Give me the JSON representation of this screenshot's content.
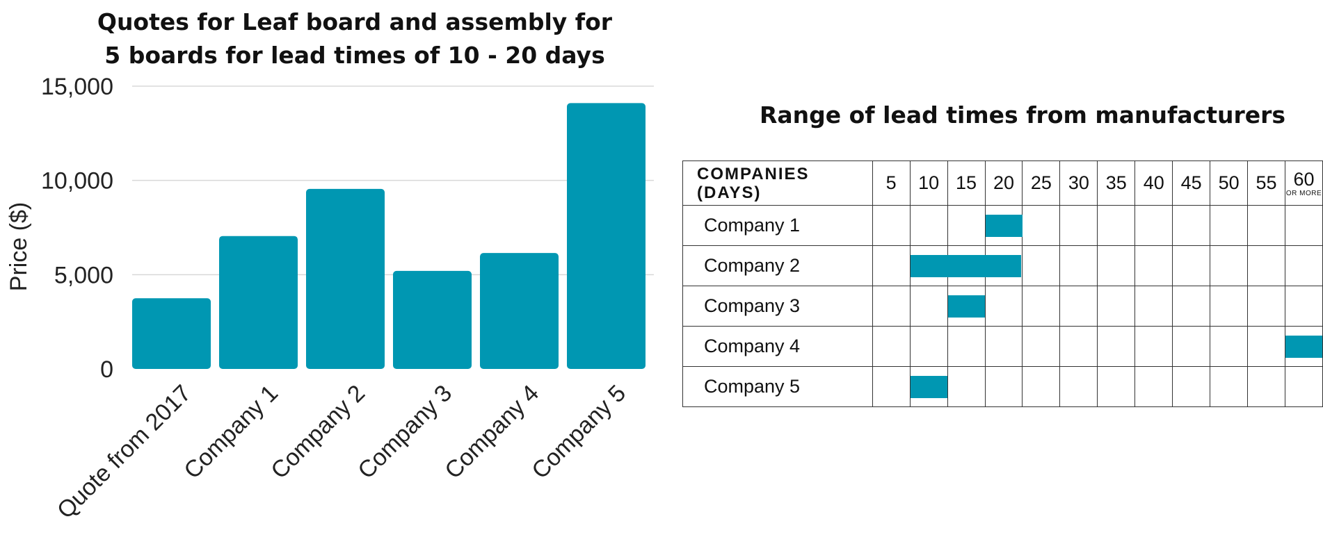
{
  "colors": {
    "accent": "#0097b2",
    "grid": "#d8d8d8",
    "text": "#111111"
  },
  "chart_data": [
    {
      "type": "bar",
      "title": "Quotes for Leaf board and assembly for 5 boards for lead times of 10 - 20 days",
      "categories": [
        "Quote from 2017",
        "Company 1",
        "Company 2",
        "Company 3",
        "Company 4",
        "Company 5"
      ],
      "values": [
        3750,
        7050,
        9550,
        5200,
        6150,
        14100
      ],
      "ylabel": "Price ($)",
      "xlabel": "",
      "ylim": [
        0,
        15000
      ],
      "yticks": [
        0,
        5000,
        10000,
        15000
      ],
      "ytick_labels": [
        "0",
        "5,000",
        "10,000",
        "15,000"
      ],
      "grid": true,
      "color": "#0097b2"
    },
    {
      "type": "table",
      "title": "Range of lead times from manufacturers",
      "header": "COMPANIES (DAYS)",
      "header_lines": [
        "COMPANIES",
        "(DAYS)"
      ],
      "days": [
        "5",
        "10",
        "15",
        "20",
        "25",
        "30",
        "35",
        "40",
        "45",
        "50",
        "55",
        "60"
      ],
      "last_day_note": "OR MORE",
      "rows": [
        {
          "company": "Company 1",
          "min_days": 20,
          "max_days": 25
        },
        {
          "company": "Company 2",
          "min_days": 10,
          "max_days": 25
        },
        {
          "company": "Company 3",
          "min_days": 15,
          "max_days": 20
        },
        {
          "company": "Company 4",
          "min_days": 60,
          "max_days": 60
        },
        {
          "company": "Company 5",
          "min_days": 10,
          "max_days": 15
        }
      ]
    }
  ]
}
